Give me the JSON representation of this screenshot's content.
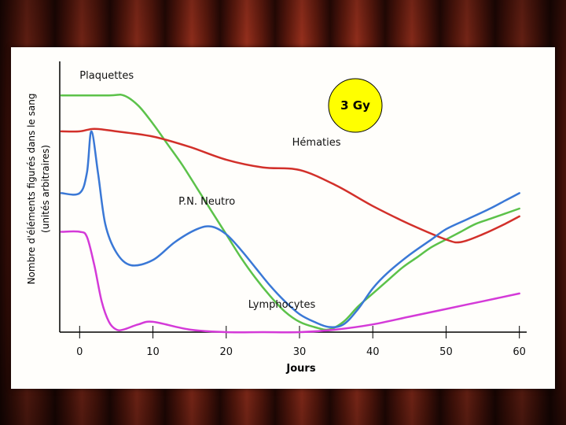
{
  "chart_data": {
    "type": "line",
    "title": "",
    "xlabel": "Jours",
    "ylabel": "Nombre d'éléments figurés dans le sang",
    "ylabel_sub": "(unités arbitraires)",
    "xlim": [
      -2.5,
      61
    ],
    "ylim": [
      0,
      100
    ],
    "x_ticks": [
      0,
      10,
      20,
      30,
      40,
      50,
      60
    ],
    "y_ticks_shown": false,
    "grid": false,
    "badge": {
      "text": "3 Gy",
      "color": "#ffff00"
    },
    "series": [
      {
        "name": "Plaquettes",
        "color": "#5cc24a",
        "x": [
          -2.5,
          4,
          6,
          8,
          10,
          12,
          14,
          16,
          18,
          20,
          22,
          24,
          26,
          28,
          30,
          32,
          34,
          36,
          38,
          40,
          42,
          44,
          46,
          48,
          50,
          52,
          54,
          56,
          58,
          60
        ],
        "y": [
          92,
          92,
          92,
          88,
          81,
          73,
          65,
          56,
          47,
          38,
          29,
          21,
          14,
          8,
          4,
          2,
          1,
          4,
          10,
          15,
          20,
          25,
          29,
          33,
          36,
          39,
          42,
          44,
          46,
          48
        ]
      },
      {
        "name": "Hématies",
        "color": "#d2302a",
        "x": [
          -2.5,
          0,
          2,
          5,
          10,
          15,
          20,
          25,
          30,
          35,
          40,
          45,
          50,
          52,
          55,
          58,
          60
        ],
        "y": [
          78,
          78,
          79,
          78,
          76,
          72,
          67,
          64,
          63,
          57,
          49,
          42,
          36,
          35,
          38,
          42,
          45
        ]
      },
      {
        "name": "P.N. Neutro",
        "color": "#3a78d6",
        "x": [
          -2.5,
          0,
          1,
          1.6,
          2.5,
          3.5,
          5,
          7,
          10,
          13,
          16,
          18,
          20,
          22,
          24,
          26,
          28,
          30,
          32,
          34,
          36,
          38,
          40,
          42,
          45,
          48,
          50,
          53,
          56,
          58,
          60
        ],
        "y": [
          54,
          54,
          62,
          78,
          62,
          42,
          31,
          26,
          28,
          35,
          40,
          41,
          38,
          32,
          25,
          18,
          12,
          7,
          4,
          2,
          3,
          9,
          17,
          23,
          30,
          36,
          40,
          44,
          48,
          51,
          54
        ]
      },
      {
        "name": "Lymphocytes",
        "color": "#d43ad8",
        "x": [
          -2.5,
          0,
          1,
          2,
          3,
          4,
          5,
          6,
          8,
          10,
          15,
          20,
          25,
          30,
          35,
          40,
          45,
          50,
          55,
          60
        ],
        "y": [
          39,
          39,
          37,
          26,
          12,
          4,
          1,
          1,
          3,
          4,
          1,
          0,
          0,
          0,
          1,
          3,
          6,
          9,
          12,
          15
        ]
      }
    ],
    "annotations": [
      {
        "text": "Plaquettes",
        "x": 0,
        "y": 100
      },
      {
        "text": "Hématies",
        "x": 29,
        "y": 74
      },
      {
        "text": "P.N. Neutro",
        "x": 13.5,
        "y": 51
      },
      {
        "text": "Lymphocytes",
        "x": 23,
        "y": 11
      }
    ]
  }
}
